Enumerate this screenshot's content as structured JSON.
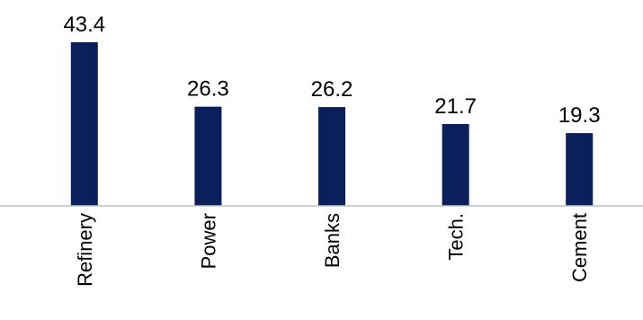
{
  "chart_data": {
    "type": "bar",
    "title": "",
    "xlabel": "",
    "ylabel": "",
    "categories": [
      "Refinery",
      "Power",
      "Banks",
      "Tech.",
      "Cement"
    ],
    "values": [
      43.4,
      26.3,
      26.2,
      21.7,
      19.3
    ],
    "value_labels": [
      "43.4",
      "26.3",
      "26.2",
      "21.7",
      "19.3"
    ],
    "ylim": [
      0,
      43.4
    ],
    "grid": false,
    "legend": "none",
    "colors": {
      "bar": "#0A1F5C",
      "axis": "#BFBFBF",
      "text": "#000000"
    }
  }
}
